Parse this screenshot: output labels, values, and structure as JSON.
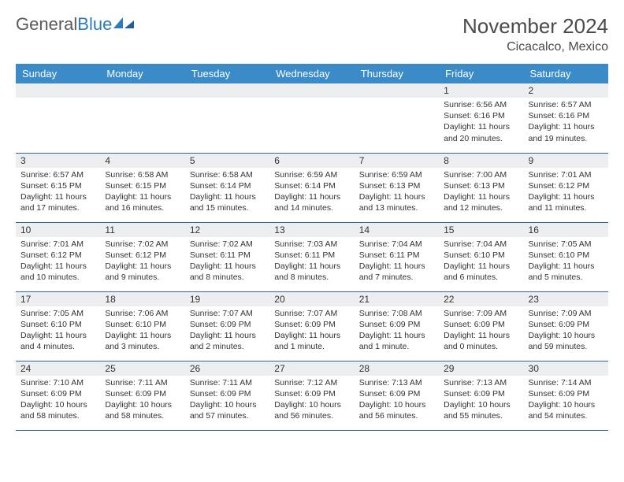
{
  "logo": {
    "text1": "General",
    "text2": "Blue"
  },
  "title": "November 2024",
  "location": "Cicacalco, Mexico",
  "dayNames": [
    "Sunday",
    "Monday",
    "Tuesday",
    "Wednesday",
    "Thursday",
    "Friday",
    "Saturday"
  ],
  "colors": {
    "headerBg": "#3b8bc9",
    "rowDivider": "#2b6aa0",
    "dayNumBg": "#eceef0"
  },
  "weeks": [
    [
      null,
      null,
      null,
      null,
      null,
      {
        "n": "1",
        "sunrise": "6:56 AM",
        "sunset": "6:16 PM",
        "daylight": "11 hours and 20 minutes."
      },
      {
        "n": "2",
        "sunrise": "6:57 AM",
        "sunset": "6:16 PM",
        "daylight": "11 hours and 19 minutes."
      }
    ],
    [
      {
        "n": "3",
        "sunrise": "6:57 AM",
        "sunset": "6:15 PM",
        "daylight": "11 hours and 17 minutes."
      },
      {
        "n": "4",
        "sunrise": "6:58 AM",
        "sunset": "6:15 PM",
        "daylight": "11 hours and 16 minutes."
      },
      {
        "n": "5",
        "sunrise": "6:58 AM",
        "sunset": "6:14 PM",
        "daylight": "11 hours and 15 minutes."
      },
      {
        "n": "6",
        "sunrise": "6:59 AM",
        "sunset": "6:14 PM",
        "daylight": "11 hours and 14 minutes."
      },
      {
        "n": "7",
        "sunrise": "6:59 AM",
        "sunset": "6:13 PM",
        "daylight": "11 hours and 13 minutes."
      },
      {
        "n": "8",
        "sunrise": "7:00 AM",
        "sunset": "6:13 PM",
        "daylight": "11 hours and 12 minutes."
      },
      {
        "n": "9",
        "sunrise": "7:01 AM",
        "sunset": "6:12 PM",
        "daylight": "11 hours and 11 minutes."
      }
    ],
    [
      {
        "n": "10",
        "sunrise": "7:01 AM",
        "sunset": "6:12 PM",
        "daylight": "11 hours and 10 minutes."
      },
      {
        "n": "11",
        "sunrise": "7:02 AM",
        "sunset": "6:12 PM",
        "daylight": "11 hours and 9 minutes."
      },
      {
        "n": "12",
        "sunrise": "7:02 AM",
        "sunset": "6:11 PM",
        "daylight": "11 hours and 8 minutes."
      },
      {
        "n": "13",
        "sunrise": "7:03 AM",
        "sunset": "6:11 PM",
        "daylight": "11 hours and 8 minutes."
      },
      {
        "n": "14",
        "sunrise": "7:04 AM",
        "sunset": "6:11 PM",
        "daylight": "11 hours and 7 minutes."
      },
      {
        "n": "15",
        "sunrise": "7:04 AM",
        "sunset": "6:10 PM",
        "daylight": "11 hours and 6 minutes."
      },
      {
        "n": "16",
        "sunrise": "7:05 AM",
        "sunset": "6:10 PM",
        "daylight": "11 hours and 5 minutes."
      }
    ],
    [
      {
        "n": "17",
        "sunrise": "7:05 AM",
        "sunset": "6:10 PM",
        "daylight": "11 hours and 4 minutes."
      },
      {
        "n": "18",
        "sunrise": "7:06 AM",
        "sunset": "6:10 PM",
        "daylight": "11 hours and 3 minutes."
      },
      {
        "n": "19",
        "sunrise": "7:07 AM",
        "sunset": "6:09 PM",
        "daylight": "11 hours and 2 minutes."
      },
      {
        "n": "20",
        "sunrise": "7:07 AM",
        "sunset": "6:09 PM",
        "daylight": "11 hours and 1 minute."
      },
      {
        "n": "21",
        "sunrise": "7:08 AM",
        "sunset": "6:09 PM",
        "daylight": "11 hours and 1 minute."
      },
      {
        "n": "22",
        "sunrise": "7:09 AM",
        "sunset": "6:09 PM",
        "daylight": "11 hours and 0 minutes."
      },
      {
        "n": "23",
        "sunrise": "7:09 AM",
        "sunset": "6:09 PM",
        "daylight": "10 hours and 59 minutes."
      }
    ],
    [
      {
        "n": "24",
        "sunrise": "7:10 AM",
        "sunset": "6:09 PM",
        "daylight": "10 hours and 58 minutes."
      },
      {
        "n": "25",
        "sunrise": "7:11 AM",
        "sunset": "6:09 PM",
        "daylight": "10 hours and 58 minutes."
      },
      {
        "n": "26",
        "sunrise": "7:11 AM",
        "sunset": "6:09 PM",
        "daylight": "10 hours and 57 minutes."
      },
      {
        "n": "27",
        "sunrise": "7:12 AM",
        "sunset": "6:09 PM",
        "daylight": "10 hours and 56 minutes."
      },
      {
        "n": "28",
        "sunrise": "7:13 AM",
        "sunset": "6:09 PM",
        "daylight": "10 hours and 56 minutes."
      },
      {
        "n": "29",
        "sunrise": "7:13 AM",
        "sunset": "6:09 PM",
        "daylight": "10 hours and 55 minutes."
      },
      {
        "n": "30",
        "sunrise": "7:14 AM",
        "sunset": "6:09 PM",
        "daylight": "10 hours and 54 minutes."
      }
    ]
  ]
}
